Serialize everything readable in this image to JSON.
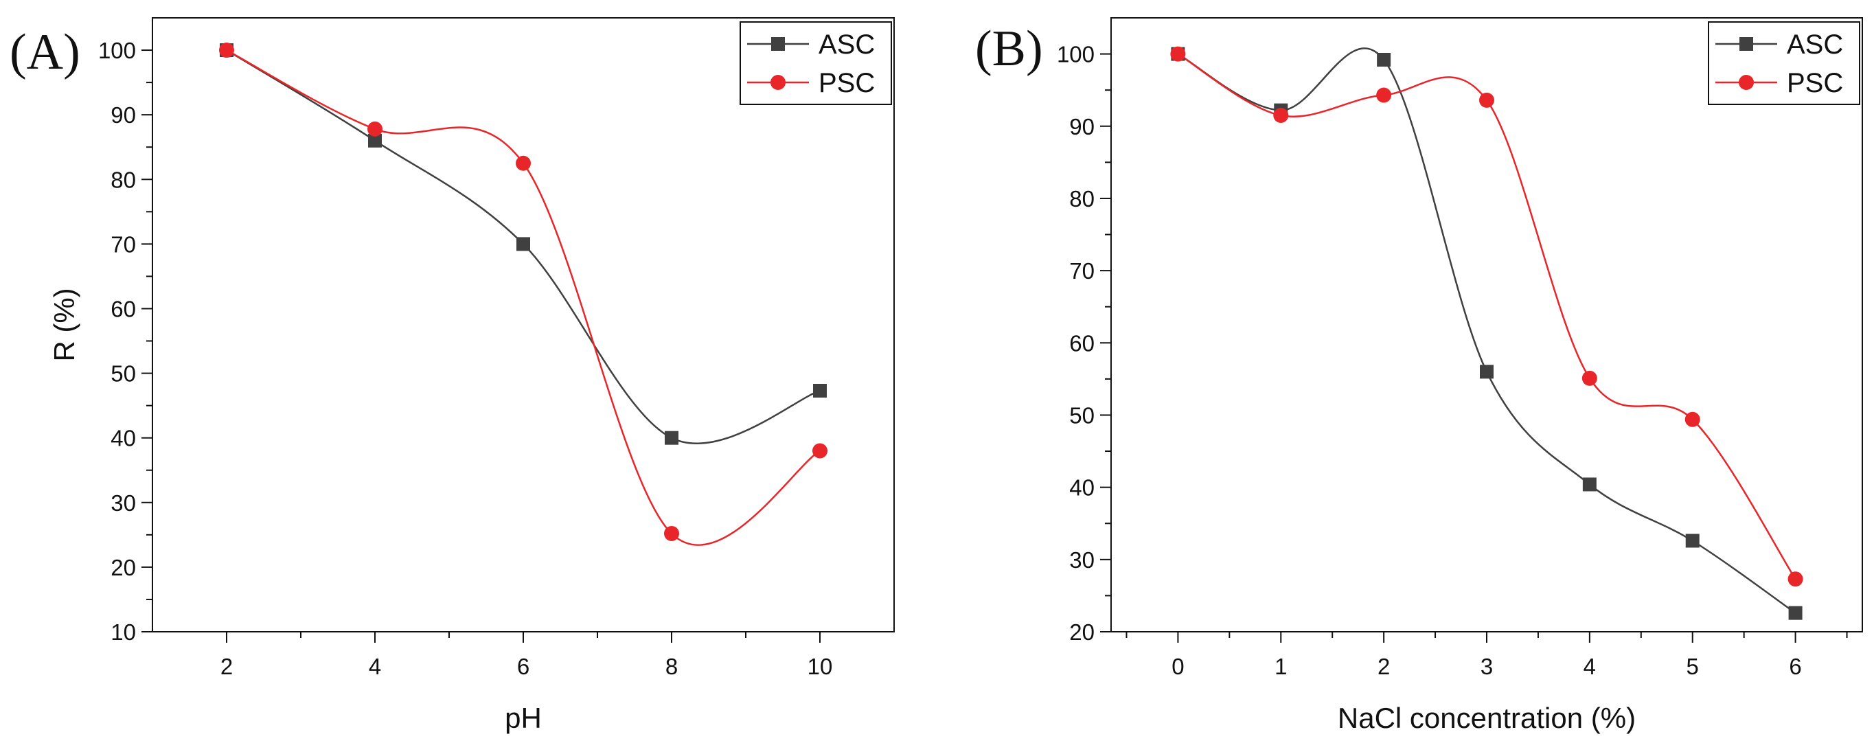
{
  "chart_data": [
    {
      "type": "line",
      "panel_label": "(A)",
      "title": "",
      "xlabel": "pH",
      "ylabel": "R (%)",
      "x": [
        2,
        4,
        6,
        8,
        10
      ],
      "x_ticks": [
        2,
        4,
        6,
        8,
        10
      ],
      "xlim": [
        1,
        11
      ],
      "y_ticks": [
        10,
        20,
        30,
        40,
        50,
        60,
        70,
        80,
        90,
        100
      ],
      "ylim": [
        10,
        105
      ],
      "legend_position": "top-right",
      "series": [
        {
          "name": "ASC",
          "marker": "square",
          "color": "#404040",
          "values": [
            100,
            86,
            70,
            40,
            47.3
          ]
        },
        {
          "name": "PSC",
          "marker": "circle",
          "color": "#e8262a",
          "values": [
            100,
            87.8,
            82.5,
            25.2,
            38
          ]
        }
      ]
    },
    {
      "type": "line",
      "panel_label": "(B)",
      "title": "",
      "xlabel": "NaCl concentration (%)",
      "ylabel": "",
      "x": [
        0,
        1,
        2,
        3,
        4,
        5,
        6
      ],
      "x_ticks": [
        0,
        1,
        2,
        3,
        4,
        5,
        6
      ],
      "xlim": [
        -0.65,
        6.65
      ],
      "y_ticks": [
        20,
        30,
        40,
        50,
        60,
        70,
        80,
        90,
        100
      ],
      "ylim": [
        20,
        105
      ],
      "legend_position": "top-right",
      "series": [
        {
          "name": "ASC",
          "marker": "square",
          "color": "#404040",
          "values": [
            100,
            92.2,
            99.2,
            56,
            40.4,
            32.6,
            22.6
          ]
        },
        {
          "name": "PSC",
          "marker": "circle",
          "color": "#e8262a",
          "values": [
            100,
            91.5,
            94.3,
            93.6,
            55.1,
            49.4,
            27.3
          ]
        }
      ]
    }
  ]
}
